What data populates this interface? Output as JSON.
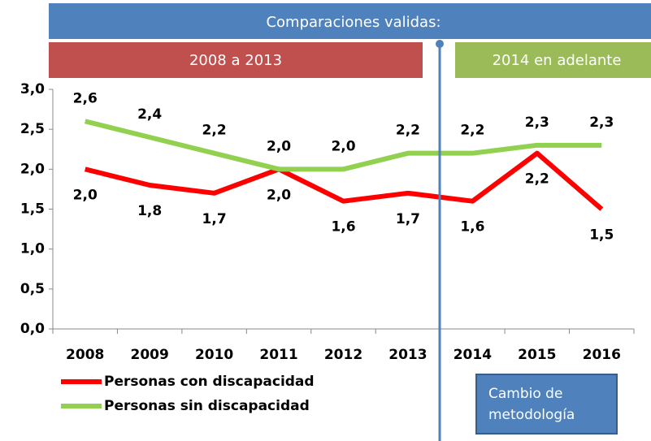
{
  "chart_data": {
    "type": "line",
    "categories": [
      "2008",
      "2009",
      "2010",
      "2011",
      "2012",
      "2013",
      "2014",
      "2015",
      "2016"
    ],
    "series": [
      {
        "name": "Personas con discapacidad",
        "color": "#ff0000",
        "values": [
          2.0,
          1.8,
          1.7,
          2.0,
          1.6,
          1.7,
          1.6,
          2.2,
          1.5
        ],
        "value_labels": [
          "2,0",
          "1,8",
          "1,7",
          "2,0",
          "1,6",
          "1,7",
          "1,6",
          "2,2",
          "1,5"
        ]
      },
      {
        "name": "Personas sin discapacidad",
        "color": "#92d050",
        "values": [
          2.6,
          2.4,
          2.2,
          2.0,
          2.0,
          2.2,
          2.2,
          2.3,
          2.3
        ],
        "value_labels": [
          "2,6",
          "2,4",
          "2,2",
          "2,0",
          "2,0",
          "2,2",
          "2,2",
          "2,3",
          "2,3"
        ]
      }
    ],
    "ylim": [
      0,
      3
    ],
    "yticks": [
      {
        "value": 0,
        "label": "0,0"
      },
      {
        "value": 0.5,
        "label": "0,5"
      },
      {
        "value": 1,
        "label": "1,0"
      },
      {
        "value": 1.5,
        "label": "1,5"
      },
      {
        "value": 2,
        "label": "2,0"
      },
      {
        "value": 2.5,
        "label": "2,5"
      },
      {
        "value": 3,
        "label": "3,0"
      }
    ],
    "annotations": [
      "Comparaciones validas:",
      "2008 a 2013",
      "2014 en adelante",
      "Cambio de metodología"
    ]
  }
}
